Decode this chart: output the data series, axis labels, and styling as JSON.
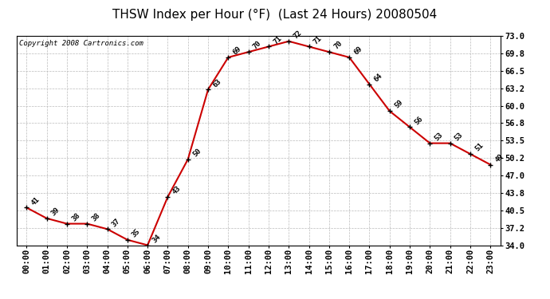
{
  "title": "THSW Index per Hour (°F)  (Last 24 Hours) 20080504",
  "copyright": "Copyright 2008 Cartronics.com",
  "hours": [
    "00:00",
    "01:00",
    "02:00",
    "03:00",
    "04:00",
    "05:00",
    "06:00",
    "07:00",
    "08:00",
    "09:00",
    "10:00",
    "11:00",
    "12:00",
    "13:00",
    "14:00",
    "15:00",
    "16:00",
    "17:00",
    "18:00",
    "19:00",
    "20:00",
    "21:00",
    "22:00",
    "23:00"
  ],
  "values": [
    41,
    39,
    38,
    38,
    37,
    35,
    34,
    43,
    50,
    63,
    69,
    70,
    71,
    72,
    71,
    70,
    69,
    64,
    59,
    56,
    53,
    53,
    51,
    49
  ],
  "ylim": [
    34.0,
    73.0
  ],
  "yticks": [
    34.0,
    37.2,
    40.5,
    43.8,
    47.0,
    50.2,
    53.5,
    56.8,
    60.0,
    63.2,
    66.5,
    69.8,
    73.0
  ],
  "ytick_labels": [
    "34.0",
    "37.2",
    "40.5",
    "43.8",
    "47.0",
    "50.2",
    "53.5",
    "56.8",
    "60.0",
    "63.2",
    "66.5",
    "69.8",
    "73.0"
  ],
  "line_color": "#cc0000",
  "marker_edge_color": "black",
  "bg_color": "white",
  "grid_color": "#bbbbbb",
  "title_fontsize": 11,
  "label_fontsize": 7.5,
  "annotation_fontsize": 6.5,
  "copyright_fontsize": 6.5
}
